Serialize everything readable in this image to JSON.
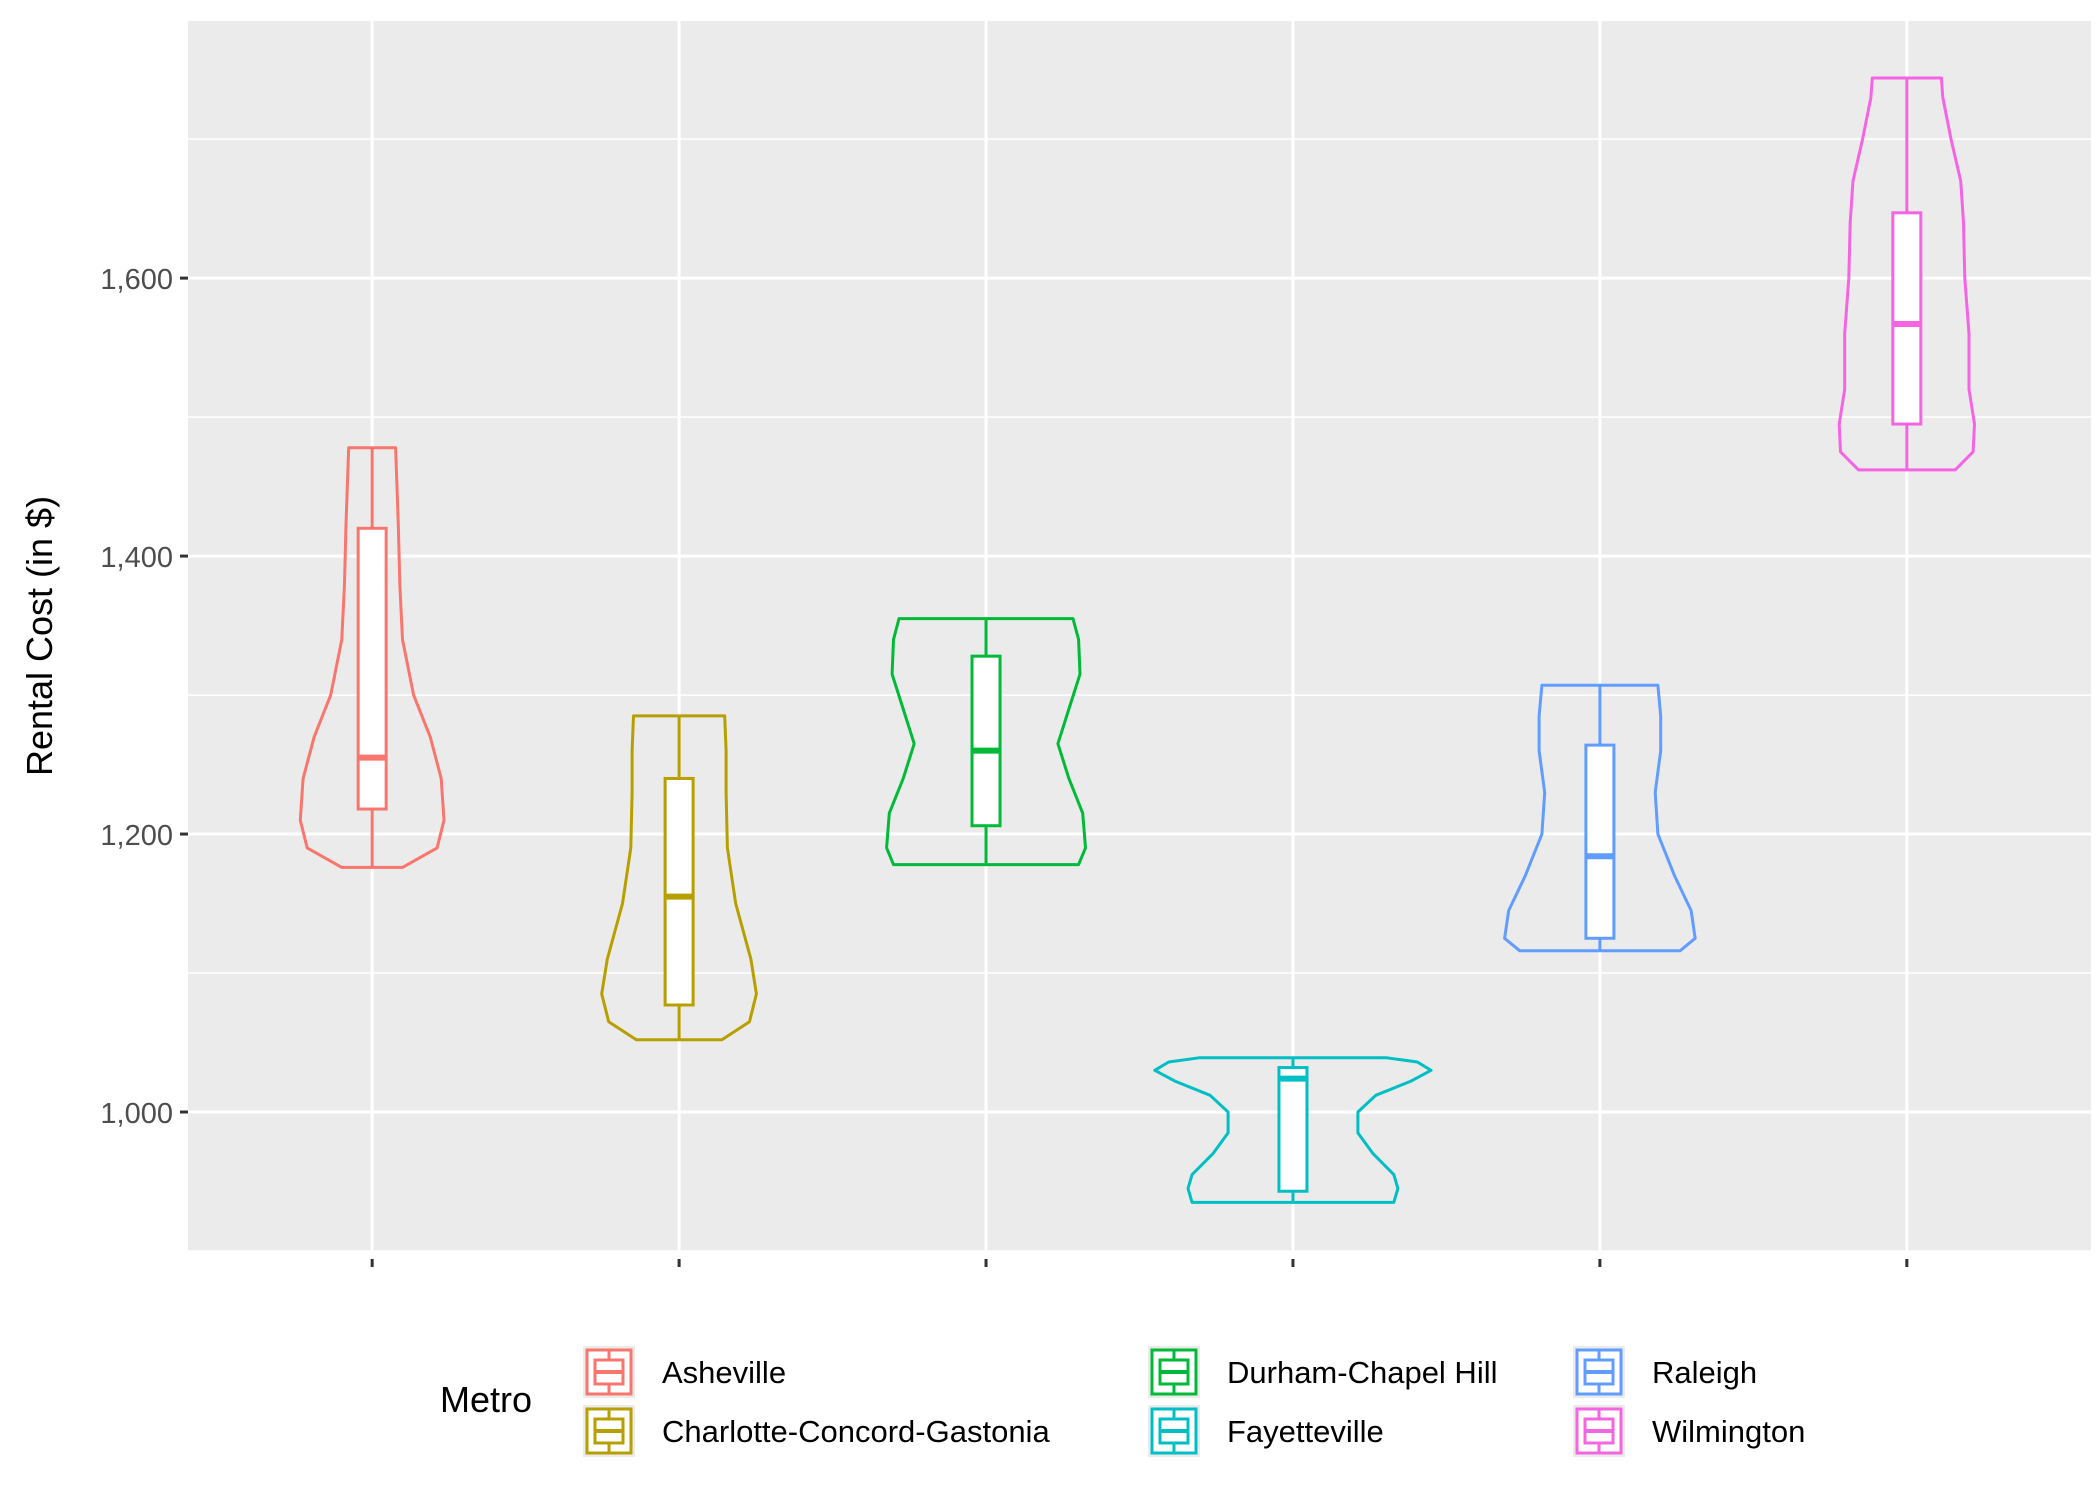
{
  "chart_data": {
    "type": "violin",
    "ylabel": "Rental Cost (in $)",
    "xlabel": "",
    "ylim": [
      900,
      1785
    ],
    "yticks": [
      1000,
      1200,
      1400,
      1600
    ],
    "ytick_labels": [
      "1,000",
      "1,200",
      "1,400",
      "1,600"
    ],
    "grid": true,
    "legend": {
      "title": "Metro",
      "position": "bottom",
      "entries": [
        "Asheville",
        "Charlotte-Concord-Gastonia",
        "Durham-Chapel Hill",
        "Fayetteville",
        "Raleigh",
        "Wilmington"
      ]
    },
    "series": [
      {
        "name": "Asheville",
        "color": "#F8766D",
        "min": 1176,
        "q1": 1218,
        "median": 1255,
        "q3": 1420,
        "max": 1478,
        "density": [
          [
            1176,
            0.22
          ],
          [
            1190,
            0.47
          ],
          [
            1210,
            0.52
          ],
          [
            1240,
            0.5
          ],
          [
            1270,
            0.42
          ],
          [
            1300,
            0.3
          ],
          [
            1340,
            0.22
          ],
          [
            1380,
            0.2
          ],
          [
            1420,
            0.19
          ],
          [
            1450,
            0.18
          ],
          [
            1478,
            0.17
          ]
        ]
      },
      {
        "name": "Charlotte-Concord-Gastonia",
        "color": "#B79F00",
        "min": 1052,
        "q1": 1077,
        "median": 1155,
        "q3": 1240,
        "max": 1285,
        "density": [
          [
            1052,
            0.31
          ],
          [
            1065,
            0.51
          ],
          [
            1085,
            0.56
          ],
          [
            1110,
            0.52
          ],
          [
            1150,
            0.41
          ],
          [
            1190,
            0.35
          ],
          [
            1230,
            0.34
          ],
          [
            1260,
            0.34
          ],
          [
            1285,
            0.33
          ]
        ]
      },
      {
        "name": "Durham-Chapel Hill",
        "color": "#00BA38",
        "min": 1178,
        "q1": 1206,
        "median": 1260,
        "q3": 1328,
        "max": 1355,
        "density": [
          [
            1178,
            0.67
          ],
          [
            1190,
            0.72
          ],
          [
            1215,
            0.7
          ],
          [
            1240,
            0.6
          ],
          [
            1265,
            0.52
          ],
          [
            1290,
            0.6
          ],
          [
            1315,
            0.68
          ],
          [
            1340,
            0.67
          ],
          [
            1355,
            0.63
          ]
        ]
      },
      {
        "name": "Fayetteville",
        "color": "#00BFC4",
        "min": 935,
        "q1": 943,
        "median": 1024,
        "q3": 1032,
        "max": 1039,
        "density": [
          [
            935,
            0.73
          ],
          [
            945,
            0.76
          ],
          [
            955,
            0.73
          ],
          [
            970,
            0.58
          ],
          [
            985,
            0.47
          ],
          [
            1000,
            0.47
          ],
          [
            1012,
            0.6
          ],
          [
            1022,
            0.85
          ],
          [
            1030,
            1.0
          ],
          [
            1036,
            0.9
          ],
          [
            1039,
            0.68
          ]
        ]
      },
      {
        "name": "Raleigh",
        "color": "#619CFF",
        "min": 1116,
        "q1": 1125,
        "median": 1184,
        "q3": 1264,
        "max": 1307,
        "density": [
          [
            1116,
            0.58
          ],
          [
            1125,
            0.69
          ],
          [
            1145,
            0.66
          ],
          [
            1170,
            0.54
          ],
          [
            1200,
            0.42
          ],
          [
            1230,
            0.4
          ],
          [
            1260,
            0.44
          ],
          [
            1285,
            0.44
          ],
          [
            1307,
            0.42
          ]
        ]
      },
      {
        "name": "Wilmington",
        "color": "#F564E3",
        "min": 1462,
        "q1": 1495,
        "median": 1567,
        "q3": 1647,
        "max": 1744,
        "density": [
          [
            1462,
            0.35
          ],
          [
            1475,
            0.48
          ],
          [
            1495,
            0.49
          ],
          [
            1520,
            0.45
          ],
          [
            1560,
            0.45
          ],
          [
            1600,
            0.42
          ],
          [
            1640,
            0.41
          ],
          [
            1670,
            0.39
          ],
          [
            1700,
            0.32
          ],
          [
            1730,
            0.26
          ],
          [
            1744,
            0.25
          ]
        ]
      }
    ]
  }
}
